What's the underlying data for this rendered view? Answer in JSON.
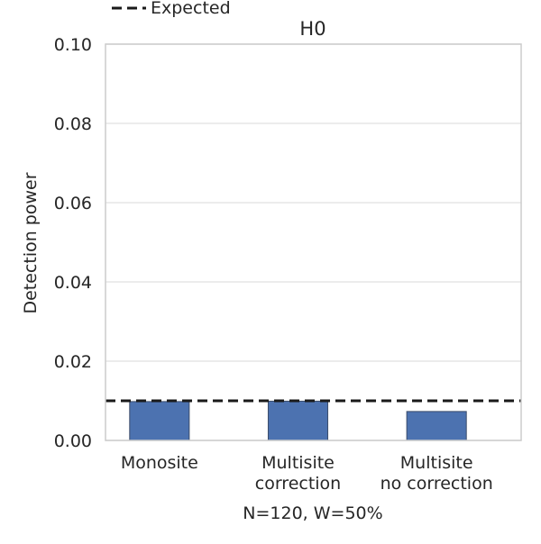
{
  "chart_data": {
    "type": "bar",
    "title": "H0",
    "xlabel": "N=120, W=50%",
    "ylabel": "Detection power",
    "categories": [
      [
        "Monosite"
      ],
      [
        "Multisite",
        "correction"
      ],
      [
        "Multisite",
        "no correction"
      ]
    ],
    "values": [
      0.0098,
      0.0099,
      0.0073
    ],
    "ylim": [
      0,
      0.1
    ],
    "yticks": [
      "0.00",
      "0.02",
      "0.04",
      "0.06",
      "0.08",
      "0.10"
    ],
    "reference_line": {
      "label": "Expected",
      "value": 0.01,
      "style": "dashed"
    },
    "legend_position": "top-left",
    "grid": true,
    "colors": {
      "bar": "#4c72b0",
      "bar_edge": "#3b4c6a",
      "grid": "#e5e5e5",
      "axis": "#cccccc",
      "reference": "#1a1a1a",
      "text": "#262626"
    }
  }
}
